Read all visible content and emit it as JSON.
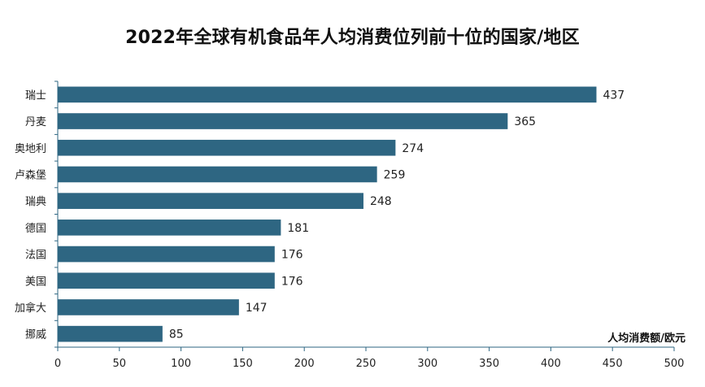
{
  "chart_data": {
    "type": "bar",
    "orientation": "horizontal",
    "title": "2022年全球有机食品年人均消费位列前十位的国家/地区",
    "categories": [
      "瑞士",
      "丹麦",
      "奥地利",
      "卢森堡",
      "瑞典",
      "德国",
      "法国",
      "美国",
      "加拿大",
      "挪威"
    ],
    "values": [
      437,
      365,
      274,
      259,
      248,
      181,
      176,
      176,
      147,
      85
    ],
    "xlabel": "人均消费额/欧元",
    "ylabel": "",
    "xlim": [
      0,
      500
    ],
    "xticks": [
      0,
      50,
      100,
      150,
      200,
      250,
      300,
      350,
      400,
      450,
      500
    ],
    "bar_color": "#2E6682",
    "axis_color": "#2E6682",
    "grid": false,
    "legend": "none",
    "data_labels": true
  }
}
